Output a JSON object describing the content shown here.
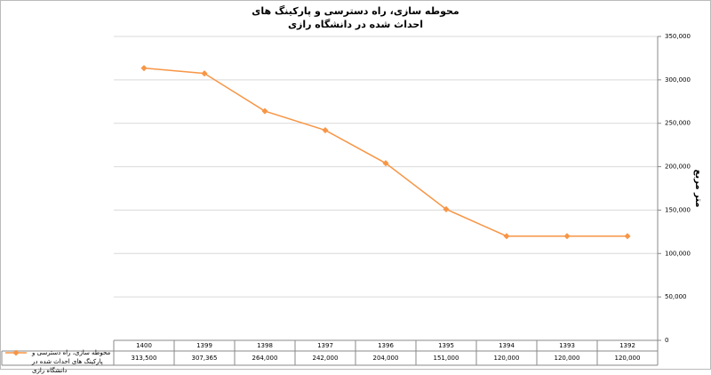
{
  "chart_data": {
    "type": "line",
    "title": [
      "محوطه سازی، راه دسترسی و پارکینگ های",
      "احداث شده در دانشگاه رازی"
    ],
    "y_label": "متر مربع",
    "categories": [
      "1400",
      "1399",
      "1398",
      "1397",
      "1396",
      "1395",
      "1394",
      "1393",
      "1392"
    ],
    "series": [
      {
        "name": "محوطه سازی، راه دسترسی و پارکینگ های احداث شده در دانشگاه رازی",
        "color": "#f79646",
        "values": [
          313500,
          307365,
          264000,
          242000,
          204000,
          151000,
          120000,
          120000,
          120000
        ],
        "value_labels": [
          "313,500",
          "307,365",
          "264,000",
          "242,000",
          "204,000",
          "151,000",
          "120,000",
          "120,000",
          "120,000"
        ]
      }
    ],
    "ylim": [
      0,
      350000
    ],
    "yticks": [
      0,
      {
        "value": 50000,
        "label": "50,000"
      },
      {
        "value": 100000,
        "label": "100,000"
      },
      {
        "value": 150000,
        "label": "150,000"
      },
      {
        "value": 200000,
        "label": "200,000"
      },
      {
        "value": 250000,
        "label": "250,000"
      },
      {
        "value": 300000,
        "label": "300,000"
      },
      {
        "value": 350000,
        "label": "350,000"
      }
    ],
    "grid": true,
    "legend": "bottom-left"
  }
}
